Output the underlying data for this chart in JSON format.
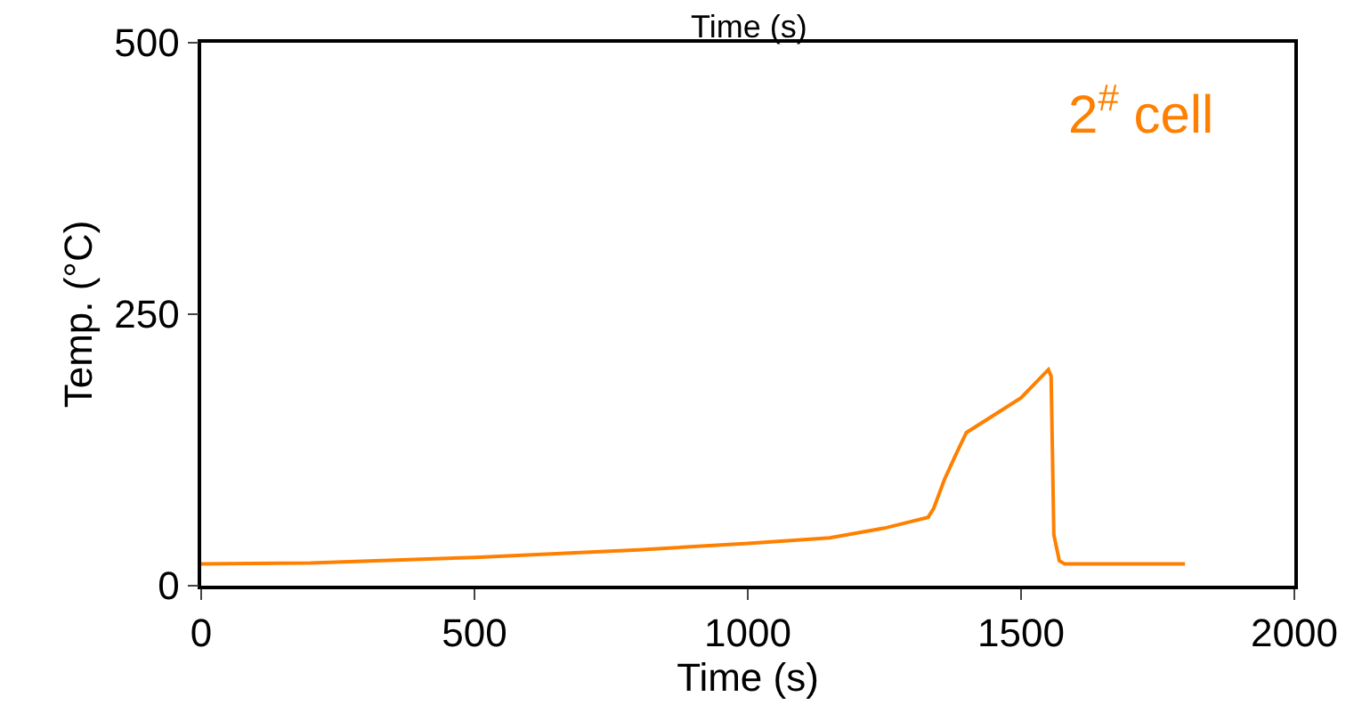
{
  "chart_data": {
    "type": "line",
    "xlabel": "Time (s)",
    "ylabel": "Temp. (°C)",
    "annotations": [
      "Time (s)",
      "2$^{#}$ cell"
    ],
    "x": [
      0,
      200,
      500,
      800,
      1000,
      1150,
      1250,
      1330,
      1340,
      1360,
      1380,
      1400,
      1450,
      1500,
      1550,
      1555,
      1560,
      1570,
      1580,
      1700,
      1800
    ],
    "series": [
      {
        "color": "#ff8000",
        "values": [
          20,
          21,
          26,
          33,
          39,
          44,
          53,
          63,
          71,
          98,
          120,
          141,
          157,
          173,
          199,
          193,
          47,
          23,
          20,
          20,
          20
        ]
      }
    ],
    "xlim": [
      0,
      2000
    ],
    "xticks": [
      0,
      500,
      1000,
      1500,
      2000
    ],
    "ylim": [
      0,
      500
    ],
    "yticks": [
      0,
      250,
      500
    ],
    "marker": "none",
    "line_style": "solid"
  }
}
